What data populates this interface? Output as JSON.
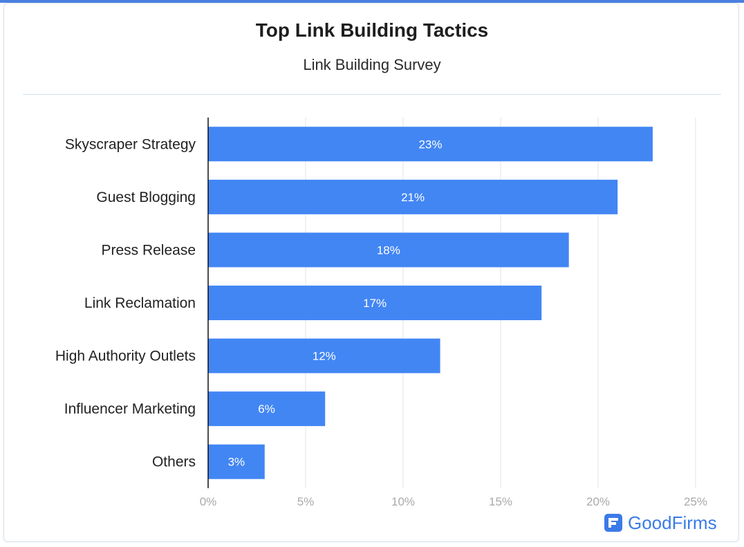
{
  "chart_data": {
    "type": "bar",
    "orientation": "horizontal",
    "title": "Top Link Building Tactics",
    "subtitle": "Link Building Survey",
    "categories": [
      "Skyscraper Strategy",
      "Guest Blogging",
      "Press Release",
      "Link Reclamation",
      "High Authority Outlets",
      "Influencer Marketing",
      "Others"
    ],
    "values": [
      22.8,
      21.0,
      18.5,
      17.1,
      11.9,
      6.0,
      2.9
    ],
    "value_labels": [
      "23%",
      "21%",
      "18%",
      "17%",
      "12%",
      "6%",
      "3%"
    ],
    "xlim": [
      0,
      25
    ],
    "xticks": [
      0,
      5,
      10,
      15,
      20,
      25
    ],
    "xtick_labels": [
      "0%",
      "5%",
      "10%",
      "15%",
      "20%",
      "25%"
    ],
    "grid": true,
    "bar_color": "#4286f4",
    "grid_color": "#e3e3e3"
  },
  "brand": {
    "name": "GoodFirms",
    "color": "#3b7be8",
    "icon": "goodfirms-logo-icon"
  }
}
